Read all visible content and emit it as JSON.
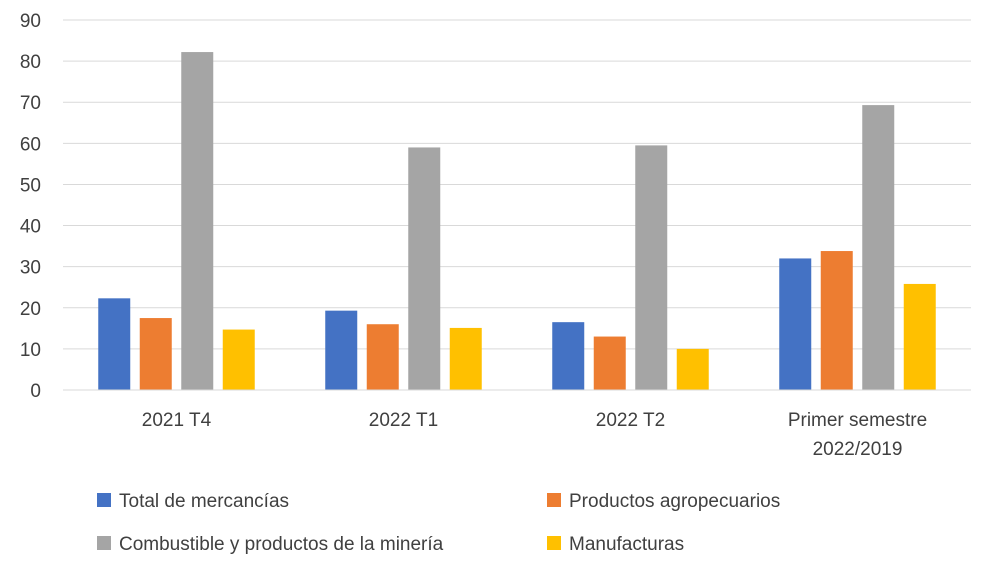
{
  "chart_data": {
    "type": "bar",
    "title": "",
    "xlabel": "",
    "ylabel": "",
    "ylim": [
      0,
      90
    ],
    "yticks": [
      0,
      10,
      20,
      30,
      40,
      50,
      60,
      70,
      80,
      90
    ],
    "grid": true,
    "legend_position": "bottom",
    "categories": [
      [
        "2021 T4"
      ],
      [
        "2022 T1"
      ],
      [
        "2022 T2"
      ],
      [
        "Primer semestre",
        "2022/2019"
      ]
    ],
    "series": [
      {
        "name": "Total de mercancías",
        "color": "#4472C4",
        "values": [
          22.3,
          19.3,
          16.5,
          32.0
        ]
      },
      {
        "name": "Productos agropecuarios",
        "color": "#ED7D31",
        "values": [
          17.5,
          16.0,
          13.0,
          33.8
        ]
      },
      {
        "name": "Combustible y productos de la minería",
        "color": "#A5A5A5",
        "values": [
          82.2,
          59.0,
          59.5,
          69.3
        ]
      },
      {
        "name": "Manufacturas",
        "color": "#FFC000",
        "values": [
          14.7,
          15.1,
          10.0,
          25.8
        ]
      }
    ]
  }
}
